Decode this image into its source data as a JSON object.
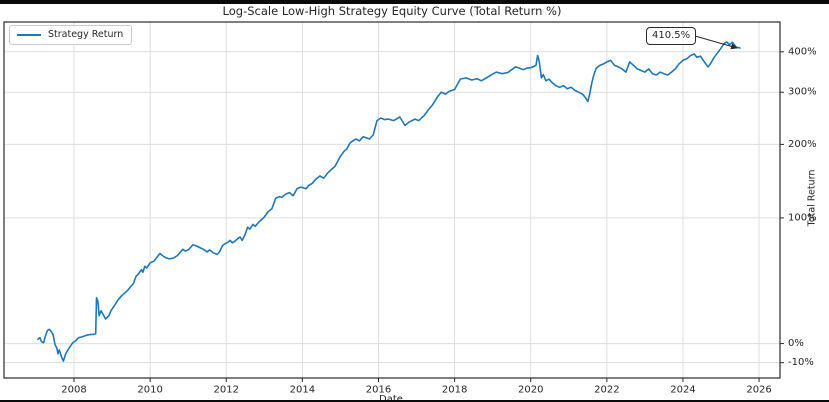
{
  "chart_data": {
    "type": "line",
    "title": "Log-Scale Low-High Strategy Equity Curve (Total Return %)",
    "xlabel": "Date",
    "ylabel": "Total Return",
    "y_scale": "log",
    "grid": true,
    "legend_position": "upper left",
    "legend_label": "Strategy Return",
    "annotation": {
      "label": "410.5%",
      "x": 2025.5,
      "y_pct": 410.5
    },
    "xlim": [
      2006.16,
      2026.55
    ],
    "ylim_pct": [
      -17.3,
      489.3
    ],
    "x_ticks": [
      {
        "value": 2008,
        "label": "2008"
      },
      {
        "value": 2010,
        "label": "2010"
      },
      {
        "value": 2012,
        "label": "2012"
      },
      {
        "value": 2014,
        "label": "2014"
      },
      {
        "value": 2016,
        "label": "2016"
      },
      {
        "value": 2018,
        "label": "2018"
      },
      {
        "value": 2020,
        "label": "2020"
      },
      {
        "value": 2022,
        "label": "2022"
      },
      {
        "value": 2024,
        "label": "2024"
      },
      {
        "value": 2026,
        "label": "2026"
      }
    ],
    "y_ticks": [
      {
        "value": 400,
        "label": "400%"
      },
      {
        "value": 300,
        "label": "300%"
      },
      {
        "value": 200,
        "label": "200%"
      },
      {
        "value": 100,
        "label": "100%"
      },
      {
        "value": 0,
        "label": "0%"
      },
      {
        "value": -10,
        "label": "-10%"
      }
    ],
    "colors": {
      "line": "#1f77b4",
      "grid": "#dedede",
      "spine": "#2b2b2b",
      "text": "#262626"
    },
    "series": [
      {
        "name": "Strategy Return",
        "points": [
          [
            2007.05,
            2.4
          ],
          [
            2007.1,
            3.3
          ],
          [
            2007.15,
            1.0
          ],
          [
            2007.2,
            0.5
          ],
          [
            2007.25,
            4.5
          ],
          [
            2007.3,
            7.5
          ],
          [
            2007.35,
            8.2
          ],
          [
            2007.4,
            7.0
          ],
          [
            2007.45,
            5.0
          ],
          [
            2007.5,
            -0.5
          ],
          [
            2007.55,
            -2.5
          ],
          [
            2007.58,
            -5.5
          ],
          [
            2007.61,
            -3.5
          ],
          [
            2007.64,
            -5.0
          ],
          [
            2007.68,
            -7.5
          ],
          [
            2007.72,
            -9.2
          ],
          [
            2007.78,
            -5.5
          ],
          [
            2007.84,
            -3.5
          ],
          [
            2007.9,
            -1.5
          ],
          [
            2007.97,
            0.5
          ],
          [
            2008.04,
            1.5
          ],
          [
            2008.12,
            3.3
          ],
          [
            2008.2,
            3.7
          ],
          [
            2008.28,
            4.3
          ],
          [
            2008.36,
            4.9
          ],
          [
            2008.44,
            5.2
          ],
          [
            2008.52,
            5.2
          ],
          [
            2008.57,
            5.6
          ],
          [
            2008.59,
            28.7
          ],
          [
            2008.63,
            26.0
          ],
          [
            2008.66,
            16.6
          ],
          [
            2008.71,
            19.8
          ],
          [
            2008.76,
            17.6
          ],
          [
            2008.83,
            14.5
          ],
          [
            2008.92,
            16.6
          ],
          [
            2008.97,
            19.8
          ],
          [
            2009.08,
            24.0
          ],
          [
            2009.16,
            27.4
          ],
          [
            2009.25,
            30.2
          ],
          [
            2009.34,
            32.3
          ],
          [
            2009.42,
            34.5
          ],
          [
            2009.5,
            37.3
          ],
          [
            2009.56,
            39.3
          ],
          [
            2009.63,
            45.0
          ],
          [
            2009.68,
            46.4
          ],
          [
            2009.77,
            50.3
          ],
          [
            2009.81,
            48.2
          ],
          [
            2009.86,
            53.1
          ],
          [
            2009.91,
            51.7
          ],
          [
            2010.0,
            56.0
          ],
          [
            2010.1,
            57.5
          ],
          [
            2010.2,
            62.0
          ],
          [
            2010.26,
            64.4
          ],
          [
            2010.32,
            62.5
          ],
          [
            2010.42,
            60.4
          ],
          [
            2010.52,
            59.5
          ],
          [
            2010.62,
            60.4
          ],
          [
            2010.72,
            62.5
          ],
          [
            2010.78,
            65.0
          ],
          [
            2010.86,
            68.2
          ],
          [
            2010.92,
            66.6
          ],
          [
            2011.0,
            67.6
          ],
          [
            2011.06,
            69.9
          ],
          [
            2011.12,
            72.3
          ],
          [
            2011.2,
            71.7
          ],
          [
            2011.3,
            69.9
          ],
          [
            2011.4,
            68.2
          ],
          [
            2011.5,
            65.7
          ],
          [
            2011.56,
            67.6
          ],
          [
            2011.66,
            65.0
          ],
          [
            2011.76,
            63.4
          ],
          [
            2011.82,
            65.7
          ],
          [
            2011.9,
            71.7
          ],
          [
            2011.96,
            73.3
          ],
          [
            2012.05,
            75.0
          ],
          [
            2012.1,
            76.7
          ],
          [
            2012.16,
            74.3
          ],
          [
            2012.22,
            75.7
          ],
          [
            2012.3,
            78.3
          ],
          [
            2012.36,
            80.0
          ],
          [
            2012.42,
            76.7
          ],
          [
            2012.5,
            83.0
          ],
          [
            2012.56,
            90.0
          ],
          [
            2012.62,
            88.0
          ],
          [
            2012.7,
            93.0
          ],
          [
            2012.76,
            91.0
          ],
          [
            2012.86,
            95.6
          ],
          [
            2013.0,
            101.0
          ],
          [
            2013.1,
            107.0
          ],
          [
            2013.2,
            110.5
          ],
          [
            2013.3,
            123.0
          ],
          [
            2013.4,
            125.0
          ],
          [
            2013.46,
            124.0
          ],
          [
            2013.56,
            128.0
          ],
          [
            2013.66,
            130.0
          ],
          [
            2013.76,
            126.0
          ],
          [
            2013.86,
            135.0
          ],
          [
            2013.96,
            137.0
          ],
          [
            2014.1,
            135.0
          ],
          [
            2014.16,
            139.0
          ],
          [
            2014.26,
            142.0
          ],
          [
            2014.36,
            148.0
          ],
          [
            2014.46,
            152.0
          ],
          [
            2014.56,
            149.0
          ],
          [
            2014.66,
            156.0
          ],
          [
            2014.76,
            161.0
          ],
          [
            2014.86,
            166.0
          ],
          [
            2015.0,
            181.0
          ],
          [
            2015.1,
            189.0
          ],
          [
            2015.16,
            192.0
          ],
          [
            2015.26,
            203.0
          ],
          [
            2015.4,
            209.0
          ],
          [
            2015.5,
            206.0
          ],
          [
            2015.6,
            213.0
          ],
          [
            2015.76,
            209.0
          ],
          [
            2015.86,
            216.0
          ],
          [
            2015.96,
            242.0
          ],
          [
            2016.06,
            247.0
          ],
          [
            2016.16,
            244.0
          ],
          [
            2016.26,
            245.0
          ],
          [
            2016.4,
            242.0
          ],
          [
            2016.56,
            249.0
          ],
          [
            2016.7,
            233.0
          ],
          [
            2016.8,
            239.0
          ],
          [
            2016.96,
            245.0
          ],
          [
            2017.06,
            242.0
          ],
          [
            2017.2,
            252.0
          ],
          [
            2017.3,
            262.0
          ],
          [
            2017.42,
            273.0
          ],
          [
            2017.55,
            290.0
          ],
          [
            2017.65,
            300.0
          ],
          [
            2017.76,
            296.0
          ],
          [
            2017.86,
            302.0
          ],
          [
            2018.0,
            306.0
          ],
          [
            2018.15,
            330.0
          ],
          [
            2018.3,
            333.0
          ],
          [
            2018.45,
            328.0
          ],
          [
            2018.6,
            331.0
          ],
          [
            2018.7,
            326.0
          ],
          [
            2018.85,
            334.0
          ],
          [
            2019.0,
            342.0
          ],
          [
            2019.1,
            347.0
          ],
          [
            2019.25,
            343.0
          ],
          [
            2019.4,
            346.0
          ],
          [
            2019.5,
            353.0
          ],
          [
            2019.6,
            360.0
          ],
          [
            2019.7,
            357.0
          ],
          [
            2019.8,
            353.0
          ],
          [
            2019.9,
            357.0
          ],
          [
            2020.0,
            358.0
          ],
          [
            2020.08,
            361.0
          ],
          [
            2020.14,
            364.0
          ],
          [
            2020.18,
            390.0
          ],
          [
            2020.22,
            376.0
          ],
          [
            2020.28,
            333.0
          ],
          [
            2020.33,
            341.0
          ],
          [
            2020.4,
            326.0
          ],
          [
            2020.48,
            330.0
          ],
          [
            2020.56,
            322.0
          ],
          [
            2020.66,
            315.0
          ],
          [
            2020.76,
            311.0
          ],
          [
            2020.86,
            315.0
          ],
          [
            2020.96,
            308.0
          ],
          [
            2021.06,
            311.0
          ],
          [
            2021.16,
            304.0
          ],
          [
            2021.26,
            300.0
          ],
          [
            2021.36,
            296.0
          ],
          [
            2021.44,
            288.0
          ],
          [
            2021.5,
            280.0
          ],
          [
            2021.55,
            296.0
          ],
          [
            2021.6,
            319.0
          ],
          [
            2021.66,
            341.0
          ],
          [
            2021.72,
            357.0
          ],
          [
            2021.82,
            364.0
          ],
          [
            2021.92,
            368.0
          ],
          [
            2022.0,
            373.0
          ],
          [
            2022.1,
            377.0
          ],
          [
            2022.2,
            364.0
          ],
          [
            2022.3,
            360.0
          ],
          [
            2022.4,
            355.0
          ],
          [
            2022.5,
            347.0
          ],
          [
            2022.6,
            373.0
          ],
          [
            2022.7,
            364.0
          ],
          [
            2022.8,
            355.0
          ],
          [
            2022.9,
            351.0
          ],
          [
            2023.0,
            347.0
          ],
          [
            2023.1,
            355.0
          ],
          [
            2023.2,
            343.0
          ],
          [
            2023.3,
            340.0
          ],
          [
            2023.4,
            347.0
          ],
          [
            2023.5,
            343.0
          ],
          [
            2023.6,
            340.0
          ],
          [
            2023.7,
            347.0
          ],
          [
            2023.8,
            355.0
          ],
          [
            2023.9,
            368.0
          ],
          [
            2024.0,
            377.0
          ],
          [
            2024.1,
            381.0
          ],
          [
            2024.2,
            390.0
          ],
          [
            2024.3,
            394.0
          ],
          [
            2024.36,
            385.0
          ],
          [
            2024.46,
            388.0
          ],
          [
            2024.56,
            373.0
          ],
          [
            2024.66,
            360.0
          ],
          [
            2024.72,
            368.0
          ],
          [
            2024.82,
            385.0
          ],
          [
            2024.92,
            399.0
          ],
          [
            2025.0,
            410.0
          ],
          [
            2025.08,
            423.0
          ],
          [
            2025.15,
            428.0
          ],
          [
            2025.22,
            420.0
          ],
          [
            2025.3,
            427.0
          ],
          [
            2025.4,
            413.0
          ],
          [
            2025.5,
            410.5
          ]
        ]
      }
    ]
  }
}
